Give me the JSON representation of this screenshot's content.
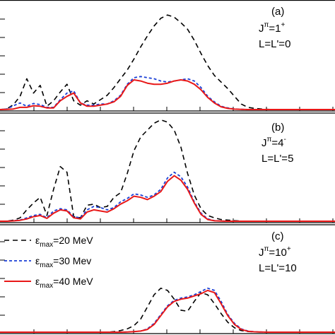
{
  "chart_data": [
    {
      "type": "line",
      "panel_label": "(a)",
      "jpi": {
        "j": "J",
        "pi": "π",
        "value": "=1",
        "parity": "+"
      },
      "l_label": "L=L'=0",
      "series": [
        {
          "ref": "e20",
          "color": "#000000",
          "dash": "7,5",
          "x": [
            0,
            2,
            4,
            6,
            8,
            10,
            12,
            14,
            16,
            18,
            20,
            22,
            24,
            26,
            28,
            30,
            32,
            34,
            36,
            38,
            40,
            42,
            44,
            46,
            48,
            50,
            52,
            54,
            56,
            58,
            60,
            62,
            64,
            66,
            68,
            70,
            72,
            74,
            76,
            78,
            80,
            82,
            84,
            86,
            88,
            90,
            92,
            94,
            96,
            98,
            100
          ],
          "y": [
            0,
            0.05,
            0.45,
            1.2,
            2.8,
            1.5,
            2.2,
            0.3,
            0.8,
            1.6,
            2.3,
            0.8,
            0.4,
            0.8,
            0.5,
            0.9,
            1.3,
            2.0,
            2.8,
            3.6,
            4.6,
            5.7,
            6.7,
            7.6,
            8.3,
            8.6,
            8.4,
            7.9,
            7.3,
            6.3,
            5.1,
            4.0,
            3.1,
            2.5,
            1.9,
            1.2,
            0.5,
            0.2,
            0.1,
            0.05,
            0.02,
            0,
            0,
            0,
            0,
            0,
            0,
            0,
            0,
            0,
            0
          ]
        },
        {
          "ref": "e30",
          "color": "#1a3fd6",
          "dash": "4,3",
          "x": [
            0,
            2,
            4,
            6,
            8,
            10,
            12,
            14,
            16,
            18,
            20,
            22,
            24,
            26,
            28,
            30,
            32,
            34,
            36,
            38,
            40,
            42,
            44,
            46,
            48,
            50,
            52,
            54,
            56,
            58,
            60,
            62,
            64,
            66,
            68,
            70,
            72,
            74,
            76,
            78,
            80,
            82,
            84,
            86,
            88,
            90,
            92,
            94,
            96,
            98,
            100
          ],
          "y": [
            0,
            0.05,
            0.35,
            0.6,
            0.3,
            0.55,
            0.45,
            0.2,
            0.2,
            0.9,
            1.5,
            1.7,
            0.6,
            0.4,
            0.4,
            0.5,
            0.5,
            0.8,
            1.3,
            2.3,
            2.9,
            3.0,
            2.9,
            2.8,
            2.6,
            2.5,
            2.6,
            2.7,
            2.8,
            2.6,
            2.0,
            1.2,
            0.7,
            0.3,
            0.15,
            0.05,
            0.02,
            0,
            0,
            0,
            0,
            0,
            0,
            0,
            0,
            0,
            0,
            0,
            0,
            0,
            0
          ]
        },
        {
          "ref": "e40",
          "color": "#e81818",
          "dash": "",
          "x": [
            0,
            2,
            4,
            6,
            8,
            10,
            12,
            14,
            16,
            18,
            20,
            22,
            24,
            26,
            28,
            30,
            32,
            34,
            36,
            38,
            40,
            42,
            44,
            46,
            48,
            50,
            52,
            54,
            56,
            58,
            60,
            62,
            64,
            66,
            68,
            70,
            72,
            74,
            76,
            78,
            80,
            82,
            84,
            86,
            88,
            90,
            92,
            94,
            96,
            98,
            100
          ],
          "y": [
            0,
            0.02,
            0.05,
            0.2,
            0.2,
            0.35,
            0.3,
            0.15,
            0.15,
            0.8,
            1.2,
            1.5,
            0.6,
            0.3,
            0.3,
            0.4,
            0.5,
            0.7,
            1.2,
            2.2,
            2.7,
            2.6,
            2.4,
            2.3,
            2.3,
            2.4,
            2.6,
            2.7,
            2.6,
            2.3,
            1.8,
            1.1,
            0.6,
            0.25,
            0.1,
            0.04,
            0.01,
            0,
            0,
            0,
            0,
            0,
            0,
            0,
            0,
            0,
            0,
            0,
            0,
            0,
            0
          ]
        }
      ]
    },
    {
      "type": "line",
      "panel_label": "(b)",
      "jpi": {
        "j": "J",
        "pi": "π",
        "value": "=4",
        "parity": "-"
      },
      "l_label": "L=L'=5",
      "series": [
        {
          "ref": "e20",
          "color": "#000000",
          "dash": "7,5",
          "x": [
            0,
            2,
            4,
            6,
            8,
            10,
            12,
            14,
            16,
            18,
            20,
            22,
            24,
            26,
            28,
            30,
            32,
            34,
            36,
            38,
            40,
            42,
            44,
            46,
            48,
            50,
            52,
            54,
            56,
            58,
            60,
            62,
            64,
            66,
            68,
            70,
            72,
            74,
            76,
            78,
            80,
            82,
            84,
            86,
            88,
            90,
            92,
            94,
            96,
            98,
            100
          ],
          "y": [
            0,
            0,
            0.1,
            0.3,
            1.0,
            1.6,
            2.1,
            0.5,
            2.8,
            4.8,
            4.3,
            0.4,
            0.3,
            1.4,
            1.5,
            1.2,
            1.3,
            2.1,
            2.5,
            4.2,
            6.2,
            7.4,
            8.0,
            8.6,
            8.9,
            8.7,
            8.0,
            6.5,
            4.2,
            2.3,
            1.1,
            0.5,
            0.3,
            0.15,
            0.1,
            0.05,
            0.02,
            0,
            0,
            0,
            0,
            0,
            0,
            0,
            0,
            0,
            0,
            0,
            0,
            0,
            0
          ]
        },
        {
          "ref": "e30",
          "color": "#1a3fd6",
          "dash": "4,3",
          "x": [
            0,
            2,
            4,
            6,
            8,
            10,
            12,
            14,
            16,
            18,
            20,
            22,
            24,
            26,
            28,
            30,
            32,
            34,
            36,
            38,
            40,
            42,
            44,
            46,
            48,
            50,
            52,
            54,
            56,
            58,
            60,
            62,
            64,
            66,
            68,
            70,
            72,
            74,
            76,
            78,
            80,
            82,
            84,
            86,
            88,
            90,
            92,
            94,
            96,
            98,
            100
          ],
          "y": [
            0,
            0,
            0.05,
            0.1,
            0.3,
            0.5,
            0.6,
            0.3,
            0.9,
            1.1,
            1.0,
            0.4,
            0.3,
            1.0,
            1.3,
            1.2,
            1.0,
            1.2,
            1.7,
            2.0,
            2.4,
            2.3,
            2.1,
            2.3,
            2.8,
            3.8,
            4.3,
            3.9,
            3.0,
            1.7,
            0.7,
            0.2,
            0.05,
            0.02,
            0,
            0,
            0,
            0,
            0,
            0,
            0,
            0,
            0,
            0,
            0,
            0,
            0,
            0,
            0,
            0,
            0
          ]
        },
        {
          "ref": "e40",
          "color": "#e81818",
          "dash": "",
          "x": [
            0,
            2,
            4,
            6,
            8,
            10,
            12,
            14,
            16,
            18,
            20,
            22,
            24,
            26,
            28,
            30,
            32,
            34,
            36,
            38,
            40,
            42,
            44,
            46,
            48,
            50,
            52,
            54,
            56,
            58,
            60,
            62,
            64,
            66,
            68,
            70,
            72,
            74,
            76,
            78,
            80,
            82,
            84,
            86,
            88,
            90,
            92,
            94,
            96,
            98,
            100
          ],
          "y": [
            0,
            0,
            0.03,
            0.08,
            0.2,
            0.4,
            0.5,
            0.25,
            0.7,
            1.0,
            0.9,
            0.3,
            0.2,
            0.8,
            1.0,
            0.9,
            0.8,
            1.1,
            1.5,
            1.8,
            2.2,
            2.1,
            1.9,
            2.2,
            2.6,
            3.5,
            4.0,
            3.6,
            2.8,
            1.6,
            0.6,
            0.15,
            0.04,
            0.01,
            0,
            0,
            0,
            0,
            0,
            0,
            0,
            0,
            0,
            0,
            0,
            0,
            0,
            0,
            0,
            0,
            0
          ]
        }
      ]
    },
    {
      "type": "line",
      "panel_label": "(c)",
      "jpi": {
        "j": "J",
        "pi": "π",
        "value": "=10",
        "parity": "+"
      },
      "l_label": "L=L'=10",
      "series": [
        {
          "ref": "e20",
          "color": "#000000",
          "dash": "7,5",
          "x": [
            0,
            2,
            4,
            6,
            8,
            10,
            12,
            14,
            16,
            18,
            20,
            22,
            24,
            26,
            28,
            30,
            32,
            34,
            36,
            38,
            40,
            42,
            44,
            46,
            48,
            50,
            52,
            54,
            56,
            58,
            60,
            62,
            64,
            66,
            68,
            70,
            72,
            74,
            76,
            78,
            80,
            82,
            84,
            86,
            88,
            90,
            92,
            94,
            96,
            98,
            100
          ],
          "y": [
            0,
            0,
            0,
            0,
            0,
            0,
            0,
            0,
            0,
            0,
            0,
            0,
            0,
            0,
            0,
            0,
            0,
            0.05,
            0.15,
            0.3,
            0.6,
            1.2,
            2.3,
            3.4,
            4.0,
            3.8,
            3.0,
            2.0,
            1.9,
            2.8,
            3.6,
            3.4,
            2.6,
            1.7,
            0.9,
            0.4,
            0.15,
            0.05,
            0.02,
            0,
            0,
            0,
            0,
            0,
            0,
            0,
            0,
            0,
            0,
            0,
            0
          ]
        },
        {
          "ref": "e30",
          "color": "#1a3fd6",
          "dash": "4,3",
          "x": [
            0,
            2,
            4,
            6,
            8,
            10,
            12,
            14,
            16,
            18,
            20,
            22,
            24,
            26,
            28,
            30,
            32,
            34,
            36,
            38,
            40,
            42,
            44,
            46,
            48,
            50,
            52,
            54,
            56,
            58,
            60,
            62,
            64,
            66,
            68,
            70,
            72,
            74,
            76,
            78,
            80,
            82,
            84,
            86,
            88,
            90,
            92,
            94,
            96,
            98,
            100
          ],
          "y": [
            0,
            0,
            0,
            0,
            0,
            0,
            0,
            0,
            0,
            0,
            0,
            0,
            0,
            0,
            0,
            0,
            0,
            0,
            0,
            0.02,
            0.05,
            0.1,
            0.3,
            0.8,
            1.6,
            2.4,
            2.9,
            3.1,
            3.2,
            3.4,
            3.7,
            4.0,
            3.8,
            2.8,
            1.6,
            0.8,
            0.3,
            0.1,
            0.04,
            0.01,
            0,
            0,
            0,
            0,
            0,
            0,
            0,
            0,
            0,
            0,
            0
          ]
        },
        {
          "ref": "e40",
          "color": "#e81818",
          "dash": "",
          "x": [
            0,
            2,
            4,
            6,
            8,
            10,
            12,
            14,
            16,
            18,
            20,
            22,
            24,
            26,
            28,
            30,
            32,
            34,
            36,
            38,
            40,
            42,
            44,
            46,
            48,
            50,
            52,
            54,
            56,
            58,
            60,
            62,
            64,
            66,
            68,
            70,
            72,
            74,
            76,
            78,
            80,
            82,
            84,
            86,
            88,
            90,
            92,
            94,
            96,
            98,
            100
          ],
          "y": [
            0,
            0,
            0,
            0,
            0,
            0,
            0,
            0,
            0,
            0,
            0,
            0,
            0,
            0,
            0,
            0,
            0,
            0,
            0,
            0.02,
            0.05,
            0.1,
            0.25,
            0.7,
            1.5,
            2.3,
            2.8,
            3.0,
            3.1,
            3.3,
            3.5,
            3.8,
            3.6,
            2.6,
            1.5,
            0.7,
            0.25,
            0.08,
            0.03,
            0.01,
            0,
            0,
            0,
            0,
            0,
            0,
            0,
            0,
            0,
            0,
            0
          ]
        }
      ]
    }
  ],
  "legend": {
    "symbol": "ε",
    "subscript": "max",
    "entries": [
      {
        "ref": "e20",
        "suffix": "=20 MeV",
        "color": "#000000",
        "dash": "7,5"
      },
      {
        "ref": "e30",
        "suffix": "=30 Mev",
        "color": "#1a3fd6",
        "dash": "4,3"
      },
      {
        "ref": "e40",
        "suffix": "=40 MeV",
        "color": "#e81818",
        "dash": ""
      }
    ]
  },
  "colors": {
    "axis": "#000000",
    "background": "#ffffff"
  }
}
